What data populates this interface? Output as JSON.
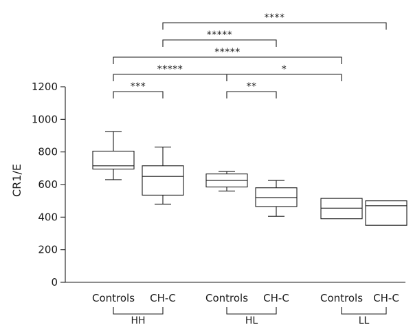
{
  "chart_data": {
    "type": "box",
    "ylabel": "CR1/E",
    "xlabel": "",
    "ylim": [
      0,
      1200
    ],
    "yticks": [
      0,
      200,
      400,
      600,
      800,
      1000,
      1200
    ],
    "grid": false,
    "groups": [
      "HH",
      "HL",
      "LL"
    ],
    "categories": [
      {
        "group": "HH",
        "label": "Controls",
        "whisker_low": 630,
        "q1": 695,
        "median": 715,
        "q3": 805,
        "whisker_high": 925
      },
      {
        "group": "HH",
        "label": "CH-C",
        "whisker_low": 480,
        "q1": 535,
        "median": 650,
        "q3": 715,
        "whisker_high": 830
      },
      {
        "group": "HL",
        "label": "Controls",
        "whisker_low": 560,
        "q1": 585,
        "median": 625,
        "q3": 665,
        "whisker_high": 680
      },
      {
        "group": "HL",
        "label": "CH-C",
        "whisker_low": 405,
        "q1": 465,
        "median": 520,
        "q3": 580,
        "whisker_high": 625
      },
      {
        "group": "LL",
        "label": "Controls",
        "whisker_low": null,
        "q1": 390,
        "median": 455,
        "q3": 515,
        "whisker_high": null
      },
      {
        "group": "LL",
        "label": "CH-C",
        "whisker_low": null,
        "q1": 350,
        "median": 470,
        "q3": 500,
        "whisker_high": null
      }
    ],
    "significance": [
      {
        "from": 0,
        "to": 1,
        "label": "***"
      },
      {
        "from": 2,
        "to": 3,
        "label": "**"
      },
      {
        "from": 0,
        "to": 2,
        "label": "*****"
      },
      {
        "from": 2,
        "to": 4,
        "label": "*"
      },
      {
        "from": 0,
        "to": 4,
        "label": "*****"
      },
      {
        "from": 1,
        "to": 3,
        "label": "*****"
      },
      {
        "from": 1,
        "to": 5,
        "label": "****"
      }
    ]
  }
}
